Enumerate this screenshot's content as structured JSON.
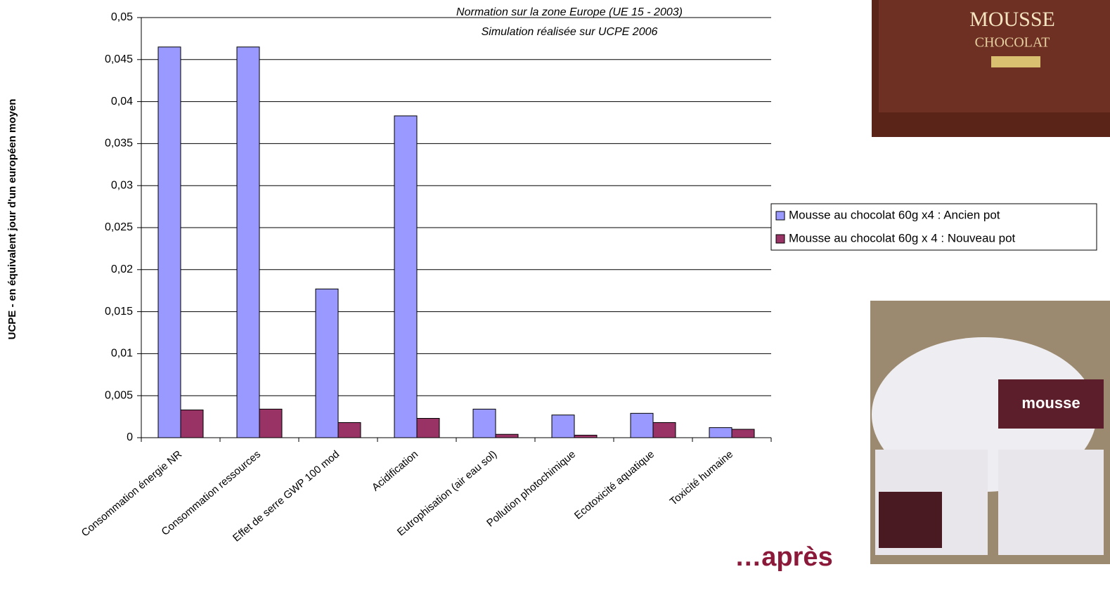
{
  "chart_data": {
    "type": "bar",
    "annotations": [
      "Normation sur la zone Europe (UE 15 - 2003)",
      "Simulation réalisée sur UCPE 2006"
    ],
    "y_label": "UCPE - en équivalent jour d'un européen moyen",
    "caption": "…après",
    "categories": [
      "Consommation énergie NR",
      "Consommation ressources",
      "Effet de serre GWP 100 mod",
      "Acidification",
      "Eutrophisation (air eau sol)",
      "Pollution photochimique",
      "Ecotoxicité aquatique",
      "Toxicité humaine"
    ],
    "series": [
      {
        "name": "Mousse au chocolat 60g x4 : Ancien pot",
        "color": "#9999ff",
        "values": [
          0.0465,
          0.0465,
          0.0177,
          0.0383,
          0.0034,
          0.0027,
          0.0029,
          0.0012
        ]
      },
      {
        "name": "Mousse au chocolat 60g x 4 : Nouveau pot",
        "color": "#993366",
        "values": [
          0.0033,
          0.0034,
          0.0018,
          0.0023,
          0.0004,
          0.0003,
          0.0018,
          0.001
        ]
      }
    ],
    "ylim": [
      0,
      0.05
    ],
    "yticks": [
      0,
      {
        "value": 0.005,
        "label": "0,005"
      },
      {
        "value": 0.01,
        "label": "0,01"
      },
      {
        "value": 0.015,
        "label": "0,015"
      },
      {
        "value": 0.02,
        "label": "0,02"
      },
      {
        "value": 0.025,
        "label": "0,025"
      },
      {
        "value": 0.03,
        "label": "0,03"
      },
      {
        "value": 0.035,
        "label": "0,035"
      },
      {
        "value": 0.04,
        "label": "0,04"
      },
      {
        "value": 0.045,
        "label": "0,045"
      },
      {
        "value": 0.05,
        "label": "0,05"
      }
    ],
    "grid": true
  }
}
